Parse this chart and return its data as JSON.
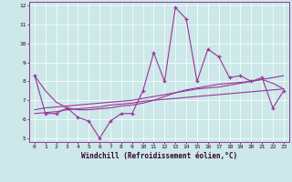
{
  "title": "",
  "xlabel": "Windchill (Refroidissement éolien,°C)",
  "ylabel": "",
  "xlim": [
    -0.5,
    23.5
  ],
  "ylim": [
    4.8,
    12.2
  ],
  "yticks": [
    5,
    6,
    7,
    8,
    9,
    10,
    11,
    12
  ],
  "xticks": [
    0,
    1,
    2,
    3,
    4,
    5,
    6,
    7,
    8,
    9,
    10,
    11,
    12,
    13,
    14,
    15,
    16,
    17,
    18,
    19,
    20,
    21,
    22,
    23
  ],
  "background_color": "#cce8e8",
  "line_color": "#993399",
  "series": {
    "actual": [
      8.3,
      6.3,
      6.3,
      6.6,
      6.1,
      5.9,
      5.0,
      5.9,
      6.3,
      6.3,
      7.5,
      9.5,
      8.0,
      11.9,
      11.3,
      8.0,
      9.7,
      9.3,
      8.2,
      8.3,
      8.0,
      8.2,
      6.6,
      7.5
    ],
    "trend1": [
      6.3,
      6.35,
      6.4,
      6.5,
      6.55,
      6.6,
      6.65,
      6.75,
      6.8,
      6.85,
      6.95,
      7.0,
      7.05,
      7.1,
      7.15,
      7.2,
      7.25,
      7.3,
      7.35,
      7.4,
      7.45,
      7.5,
      7.55,
      7.6
    ],
    "trend2": [
      6.5,
      6.6,
      6.65,
      6.7,
      6.75,
      6.8,
      6.85,
      6.9,
      6.95,
      7.0,
      7.1,
      7.2,
      7.3,
      7.4,
      7.5,
      7.6,
      7.65,
      7.7,
      7.8,
      7.9,
      8.0,
      8.1,
      8.2,
      8.3
    ],
    "trend3": [
      8.3,
      7.5,
      6.9,
      6.6,
      6.5,
      6.5,
      6.55,
      6.6,
      6.7,
      6.75,
      6.85,
      7.0,
      7.2,
      7.4,
      7.55,
      7.65,
      7.75,
      7.85,
      7.9,
      7.95,
      8.0,
      8.1,
      7.9,
      7.6
    ]
  }
}
